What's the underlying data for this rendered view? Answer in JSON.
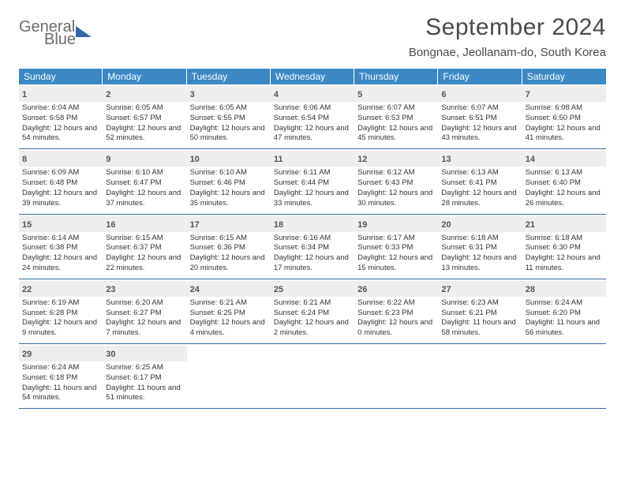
{
  "brand": {
    "general": "General",
    "blue": "Blue"
  },
  "title": "September 2024",
  "location": "Bongnae, Jeollanam-do, South Korea",
  "weekdays": [
    "Sunday",
    "Monday",
    "Tuesday",
    "Wednesday",
    "Thursday",
    "Friday",
    "Saturday"
  ],
  "colors": {
    "header_bg": "#3b88c4",
    "header_text": "#ffffff",
    "rule": "#2f69a6",
    "daynum_bg": "#eeeeee",
    "text": "#333333",
    "title_text": "#4a4a4a",
    "logo_gray": "#6b6b6b",
    "logo_blue": "#3b7ec0"
  },
  "days": [
    {
      "n": 1,
      "sr": "6:04 AM",
      "ss": "6:58 PM",
      "dl": "12 hours and 54 minutes."
    },
    {
      "n": 2,
      "sr": "6:05 AM",
      "ss": "6:57 PM",
      "dl": "12 hours and 52 minutes."
    },
    {
      "n": 3,
      "sr": "6:05 AM",
      "ss": "6:55 PM",
      "dl": "12 hours and 50 minutes."
    },
    {
      "n": 4,
      "sr": "6:06 AM",
      "ss": "6:54 PM",
      "dl": "12 hours and 47 minutes."
    },
    {
      "n": 5,
      "sr": "6:07 AM",
      "ss": "6:53 PM",
      "dl": "12 hours and 45 minutes."
    },
    {
      "n": 6,
      "sr": "6:07 AM",
      "ss": "6:51 PM",
      "dl": "12 hours and 43 minutes."
    },
    {
      "n": 7,
      "sr": "6:08 AM",
      "ss": "6:50 PM",
      "dl": "12 hours and 41 minutes."
    },
    {
      "n": 8,
      "sr": "6:09 AM",
      "ss": "6:48 PM",
      "dl": "12 hours and 39 minutes."
    },
    {
      "n": 9,
      "sr": "6:10 AM",
      "ss": "6:47 PM",
      "dl": "12 hours and 37 minutes."
    },
    {
      "n": 10,
      "sr": "6:10 AM",
      "ss": "6:46 PM",
      "dl": "12 hours and 35 minutes."
    },
    {
      "n": 11,
      "sr": "6:11 AM",
      "ss": "6:44 PM",
      "dl": "12 hours and 33 minutes."
    },
    {
      "n": 12,
      "sr": "6:12 AM",
      "ss": "6:43 PM",
      "dl": "12 hours and 30 minutes."
    },
    {
      "n": 13,
      "sr": "6:13 AM",
      "ss": "6:41 PM",
      "dl": "12 hours and 28 minutes."
    },
    {
      "n": 14,
      "sr": "6:13 AM",
      "ss": "6:40 PM",
      "dl": "12 hours and 26 minutes."
    },
    {
      "n": 15,
      "sr": "6:14 AM",
      "ss": "6:38 PM",
      "dl": "12 hours and 24 minutes."
    },
    {
      "n": 16,
      "sr": "6:15 AM",
      "ss": "6:37 PM",
      "dl": "12 hours and 22 minutes."
    },
    {
      "n": 17,
      "sr": "6:15 AM",
      "ss": "6:36 PM",
      "dl": "12 hours and 20 minutes."
    },
    {
      "n": 18,
      "sr": "6:16 AM",
      "ss": "6:34 PM",
      "dl": "12 hours and 17 minutes."
    },
    {
      "n": 19,
      "sr": "6:17 AM",
      "ss": "6:33 PM",
      "dl": "12 hours and 15 minutes."
    },
    {
      "n": 20,
      "sr": "6:18 AM",
      "ss": "6:31 PM",
      "dl": "12 hours and 13 minutes."
    },
    {
      "n": 21,
      "sr": "6:18 AM",
      "ss": "6:30 PM",
      "dl": "12 hours and 11 minutes."
    },
    {
      "n": 22,
      "sr": "6:19 AM",
      "ss": "6:28 PM",
      "dl": "12 hours and 9 minutes."
    },
    {
      "n": 23,
      "sr": "6:20 AM",
      "ss": "6:27 PM",
      "dl": "12 hours and 7 minutes."
    },
    {
      "n": 24,
      "sr": "6:21 AM",
      "ss": "6:25 PM",
      "dl": "12 hours and 4 minutes."
    },
    {
      "n": 25,
      "sr": "6:21 AM",
      "ss": "6:24 PM",
      "dl": "12 hours and 2 minutes."
    },
    {
      "n": 26,
      "sr": "6:22 AM",
      "ss": "6:23 PM",
      "dl": "12 hours and 0 minutes."
    },
    {
      "n": 27,
      "sr": "6:23 AM",
      "ss": "6:21 PM",
      "dl": "11 hours and 58 minutes."
    },
    {
      "n": 28,
      "sr": "6:24 AM",
      "ss": "6:20 PM",
      "dl": "11 hours and 56 minutes."
    },
    {
      "n": 29,
      "sr": "6:24 AM",
      "ss": "6:18 PM",
      "dl": "11 hours and 54 minutes."
    },
    {
      "n": 30,
      "sr": "6:25 AM",
      "ss": "6:17 PM",
      "dl": "11 hours and 51 minutes."
    }
  ],
  "labels": {
    "sunrise": "Sunrise:",
    "sunset": "Sunset:",
    "daylight": "Daylight:"
  },
  "layout": {
    "cols": 7,
    "rows": 5,
    "leading_blanks": 0,
    "trailing_blanks": 5
  }
}
